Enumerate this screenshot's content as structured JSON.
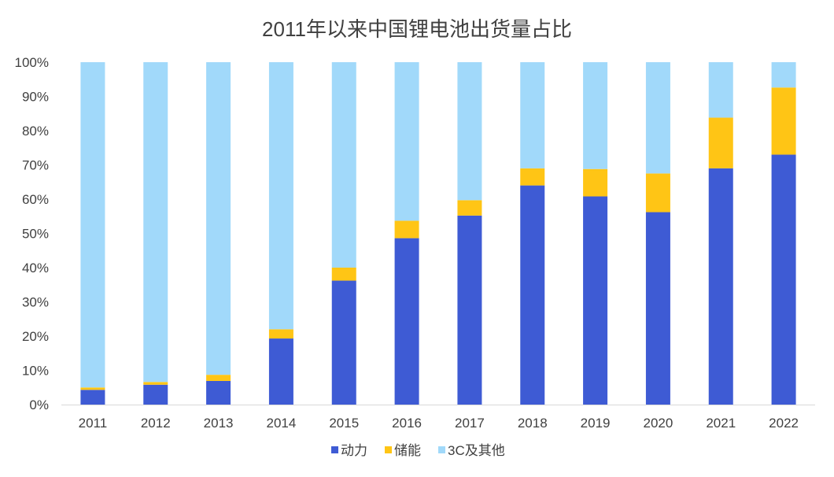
{
  "chart_data": {
    "type": "bar",
    "stacked": true,
    "title": "2011年以来中国锂电池出货量占比",
    "categories": [
      "2011",
      "2012",
      "2013",
      "2014",
      "2015",
      "2016",
      "2017",
      "2018",
      "2019",
      "2020",
      "2021",
      "2022"
    ],
    "series": [
      {
        "name": "动力",
        "color": "#3E5BD4",
        "values": [
          4.3,
          5.8,
          6.9,
          19.3,
          36.2,
          48.6,
          55.2,
          64.0,
          60.8,
          56.2,
          69.0,
          73.0
        ]
      },
      {
        "name": "储能",
        "color": "#FFC515",
        "values": [
          0.7,
          0.8,
          1.8,
          2.7,
          3.8,
          5.1,
          4.5,
          5.0,
          8.0,
          11.3,
          14.8,
          19.6
        ]
      },
      {
        "name": "3C及其他",
        "color": "#A1D9FA",
        "values": [
          95.0,
          93.4,
          91.3,
          78.0,
          60.0,
          46.3,
          40.3,
          31.0,
          31.2,
          32.5,
          16.2,
          7.4
        ]
      }
    ],
    "y_ticks": [
      "0%",
      "10%",
      "20%",
      "30%",
      "40%",
      "50%",
      "60%",
      "70%",
      "80%",
      "90%",
      "100%"
    ],
    "ylim": [
      0,
      100
    ],
    "grid": false,
    "legend": "bottom-center"
  }
}
